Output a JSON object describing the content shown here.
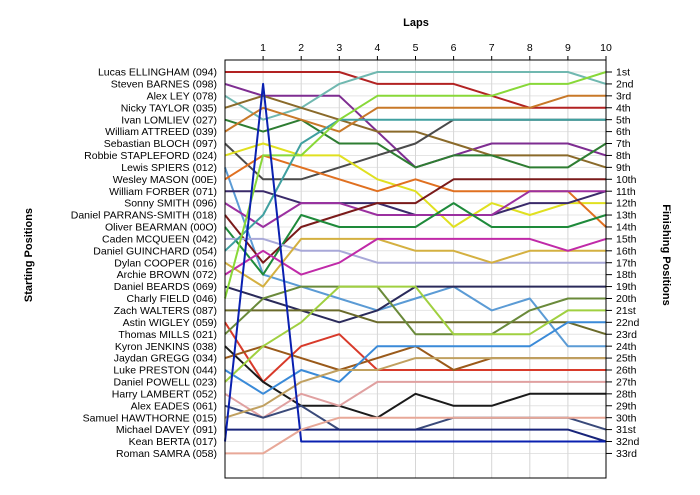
{
  "chart_data": {
    "type": "line",
    "title": "",
    "xlabel": "Laps",
    "ylabel_left": "Starting Positions",
    "ylabel_right": "Finishing Positions",
    "x": [
      0,
      1,
      2,
      3,
      4,
      5,
      6,
      7,
      8,
      9,
      10
    ],
    "x_tick_labels": [
      "1",
      "2",
      "3",
      "4",
      "5",
      "6",
      "7",
      "8",
      "9",
      "10"
    ],
    "ylim": [
      1,
      33
    ],
    "grid": true,
    "drivers": [
      "Lucas ELLINGHAM (094)",
      "Steven BARNES (098)",
      "Alex LEY (078)",
      "Nicky TAYLOR (035)",
      "Ivan LOMLIEV (027)",
      "William ATTREED (039)",
      "Sebastian BLOCH (097)",
      "Robbie STAPLEFORD (024)",
      "Lewis SPIERS (012)",
      "Wesley MASON (00E)",
      "William FORBER (071)",
      "Sonny SMITH (096)",
      "Daniel PARRANS-SMITH (018)",
      "Oliver BEARMAN (00O)",
      "Caden MCQUEEN (042)",
      "Daniel GUINCHARD (054)",
      "Dylan COOPER (016)",
      "Archie BROWN (072)",
      "Daniel BEARDS (069)",
      "Charly FIELD (046)",
      "Zach WALTERS (087)",
      "Astin WIGLEY (059)",
      "Thomas MILLS (021)",
      "Kyron JENKINS (038)",
      "Jaydan GREGG (034)",
      "Luke PRESTON (044)",
      "Daniel POWELL (023)",
      "Harry LAMBERT (052)",
      "Alex EADES (061)",
      "Samuel HAWTHORNE (015)",
      "Michael DAVEY (091)",
      "Kean BERTA (017)",
      "Roman SAMRA (058)"
    ],
    "finishing_labels": [
      "1st",
      "2nd",
      "3rd",
      "4th",
      "5th",
      "6th",
      "7th",
      "8th",
      "9th",
      "10th",
      "11th",
      "12th",
      "13th",
      "14th",
      "15th",
      "16th",
      "17th",
      "18th",
      "19th",
      "20th",
      "21st",
      "22nd",
      "23rd",
      "24th",
      "25th",
      "26th",
      "27th",
      "28th",
      "29th",
      "30th",
      "31st",
      "32nd",
      "33rd"
    ],
    "series": [
      {
        "color": "#b22222",
        "values": [
          1,
          1,
          1,
          1,
          2,
          2,
          2,
          3,
          4,
          4,
          4
        ]
      },
      {
        "color": "#7e2d91",
        "values": [
          2,
          3,
          3,
          3,
          6,
          9,
          8,
          7,
          7,
          7,
          8
        ]
      },
      {
        "color": "#70b8b0",
        "values": [
          3,
          5,
          4,
          2,
          1,
          1,
          1,
          1,
          1,
          1,
          2
        ]
      },
      {
        "color": "#8a6a2a",
        "values": [
          4,
          3,
          4,
          5,
          6,
          6,
          7,
          8,
          8,
          8,
          9
        ]
      },
      {
        "color": "#2e7d32",
        "values": [
          5,
          6,
          5,
          7,
          7,
          9,
          8,
          8,
          9,
          9,
          7
        ]
      },
      {
        "color": "#c87828",
        "values": [
          6,
          4,
          5,
          6,
          4,
          4,
          4,
          4,
          4,
          3,
          3
        ]
      },
      {
        "color": "#4a4a4a",
        "values": [
          7,
          10,
          10,
          9,
          8,
          7,
          5,
          5,
          5,
          5,
          5
        ]
      },
      {
        "color": "#e0e020",
        "values": [
          8,
          7,
          8,
          8,
          10,
          11,
          14,
          12,
          13,
          12,
          12
        ]
      },
      {
        "color": "#5b9bd5",
        "values": [
          9,
          18,
          19,
          20,
          21,
          20,
          19,
          21,
          20,
          24,
          24
        ]
      },
      {
        "color": "#e07020",
        "values": [
          10,
          8,
          9,
          10,
          11,
          10,
          11,
          11,
          11,
          11,
          14
        ]
      },
      {
        "color": "#3a2a6a",
        "values": [
          11,
          11,
          12,
          12,
          12,
          13,
          13,
          13,
          12,
          12,
          11
        ]
      },
      {
        "color": "#9b30a0",
        "values": [
          12,
          14,
          12,
          12,
          13,
          13,
          13,
          13,
          11,
          11,
          11
        ]
      },
      {
        "color": "#7a1a1a",
        "values": [
          13,
          17,
          14,
          13,
          12,
          12,
          10,
          10,
          10,
          10,
          10
        ]
      },
      {
        "color": "#1e8a3a",
        "values": [
          14,
          18,
          13,
          14,
          14,
          14,
          12,
          14,
          14,
          14,
          13
        ]
      },
      {
        "color": "#a8a8d8",
        "values": [
          15,
          15,
          16,
          16,
          17,
          17,
          17,
          17,
          17,
          17,
          17
        ]
      },
      {
        "color": "#40a0a0",
        "values": [
          16,
          13,
          7,
          5,
          5,
          5,
          5,
          5,
          5,
          5,
          5
        ]
      },
      {
        "color": "#d4b040",
        "values": [
          17,
          19,
          15,
          15,
          15,
          16,
          16,
          17,
          16,
          16,
          16
        ]
      },
      {
        "color": "#c02aa8",
        "values": [
          18,
          16,
          18,
          17,
          15,
          15,
          15,
          15,
          15,
          16,
          15
        ]
      },
      {
        "color": "#2a2a5a",
        "values": [
          19,
          20,
          21,
          22,
          21,
          19,
          19,
          19,
          19,
          19,
          19
        ]
      },
      {
        "color": "#88d838",
        "values": [
          20,
          8,
          8,
          5,
          3,
          3,
          3,
          3,
          2,
          2,
          1
        ]
      },
      {
        "color": "#6a6a2a",
        "values": [
          21,
          21,
          21,
          21,
          22,
          22,
          22,
          22,
          22,
          22,
          23
        ]
      },
      {
        "color": "#d83a2a",
        "values": [
          22,
          27,
          24,
          23,
          26,
          26,
          26,
          26,
          26,
          26,
          26
        ]
      },
      {
        "color": "#6a8a3a",
        "values": [
          23,
          20,
          19,
          19,
          19,
          23,
          23,
          23,
          21,
          20,
          20
        ]
      },
      {
        "color": "#1a1a1a",
        "values": [
          24,
          27,
          29,
          29,
          30,
          28,
          29,
          29,
          28,
          28,
          28
        ]
      },
      {
        "color": "#9a5a1a",
        "values": [
          25,
          24,
          25,
          26,
          25,
          24,
          26,
          25,
          25,
          25,
          25
        ]
      },
      {
        "color": "#3a8ad8",
        "values": [
          26,
          28,
          26,
          27,
          24,
          24,
          24,
          24,
          24,
          22,
          22
        ]
      },
      {
        "color": "#a0d040",
        "values": [
          27,
          24,
          22,
          19,
          19,
          19,
          23,
          23,
          23,
          21,
          21
        ]
      },
      {
        "color": "#e0a0a0",
        "values": [
          28,
          30,
          28,
          29,
          27,
          27,
          27,
          27,
          27,
          27,
          27
        ]
      },
      {
        "color": "#3a4a7a",
        "values": [
          29,
          30,
          29,
          31,
          31,
          31,
          30,
          30,
          30,
          30,
          31
        ]
      },
      {
        "color": "#c0a060",
        "values": [
          30,
          29,
          27,
          26,
          26,
          25,
          25,
          25,
          25,
          25,
          25
        ]
      },
      {
        "color": "#18247a",
        "values": [
          31,
          31,
          31,
          31,
          31,
          31,
          31,
          31,
          31,
          31,
          32
        ]
      },
      {
        "color": "#0a20b0",
        "values": [
          32,
          2,
          32,
          32,
          32,
          32,
          32,
          32,
          32,
          32,
          32
        ]
      },
      {
        "color": "#e8a898",
        "values": [
          33,
          33,
          31,
          30,
          30,
          30,
          30,
          30,
          30,
          30,
          30
        ]
      }
    ]
  }
}
